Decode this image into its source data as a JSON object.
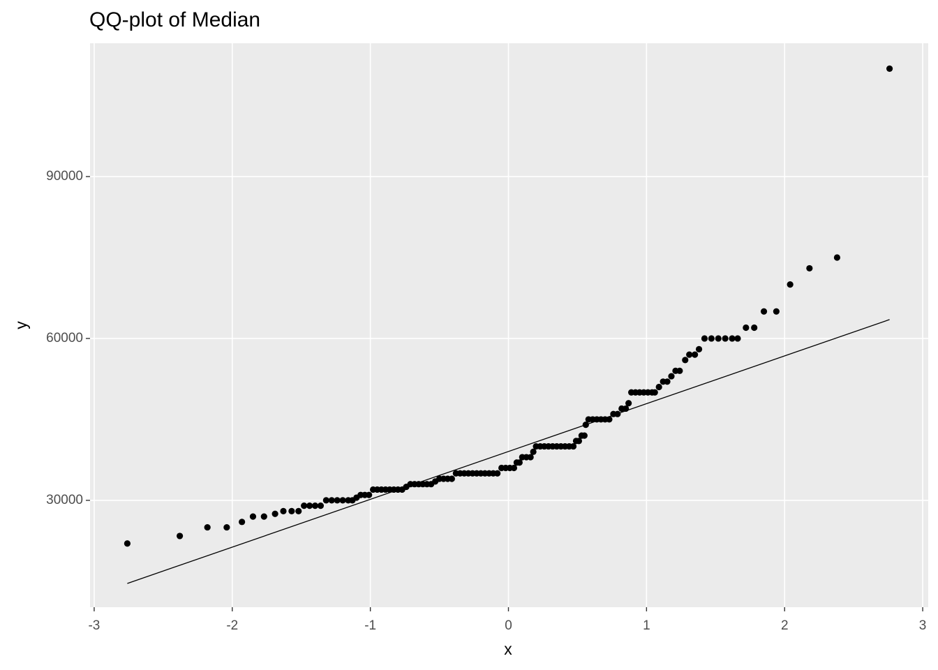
{
  "chart_data": {
    "type": "scatter",
    "title": "QQ-plot of Median",
    "x_label": "x",
    "y_label": "y",
    "x": [
      -2.76,
      -2.38,
      -2.18,
      -2.04,
      -1.93,
      -1.85,
      -1.77,
      -1.69,
      -1.63,
      -1.57,
      -1.52,
      -1.48,
      -1.44,
      -1.4,
      -1.36,
      -1.32,
      -1.28,
      -1.24,
      -1.2,
      -1.16,
      -1.13,
      -1.1,
      -1.07,
      -1.04,
      -1.01,
      -0.98,
      -0.95,
      -0.92,
      -0.89,
      -0.86,
      -0.83,
      -0.8,
      -0.77,
      -0.74,
      -0.71,
      -0.68,
      -0.65,
      -0.62,
      -0.59,
      -0.56,
      -0.53,
      -0.5,
      -0.47,
      -0.44,
      -0.41,
      -0.38,
      -0.35,
      -0.32,
      -0.29,
      -0.26,
      -0.23,
      -0.2,
      -0.17,
      -0.14,
      -0.11,
      -0.08,
      -0.05,
      -0.02,
      0.01,
      0.04,
      0.06,
      0.08,
      0.1,
      0.13,
      0.16,
      0.18,
      0.2,
      0.23,
      0.26,
      0.29,
      0.32,
      0.35,
      0.38,
      0.41,
      0.44,
      0.47,
      0.49,
      0.51,
      0.53,
      0.55,
      0.56,
      0.58,
      0.61,
      0.64,
      0.67,
      0.7,
      0.73,
      0.76,
      0.79,
      0.82,
      0.85,
      0.87,
      0.89,
      0.92,
      0.95,
      0.98,
      1.01,
      1.04,
      1.06,
      1.09,
      1.12,
      1.15,
      1.18,
      1.21,
      1.24,
      1.28,
      1.31,
      1.35,
      1.38,
      1.42,
      1.47,
      1.52,
      1.57,
      1.62,
      1.66,
      1.72,
      1.78,
      1.85,
      1.94,
      2.04,
      2.18,
      2.38,
      2.76
    ],
    "y": [
      22000,
      23400,
      25000,
      25000,
      26000,
      27000,
      27000,
      27500,
      28000,
      28000,
      28000,
      29000,
      29000,
      29000,
      29000,
      30000,
      30000,
      30000,
      30000,
      30000,
      30000,
      30500,
      31000,
      31000,
      31000,
      32000,
      32000,
      32000,
      32000,
      32000,
      32000,
      32000,
      32000,
      32500,
      33000,
      33000,
      33000,
      33000,
      33000,
      33000,
      33500,
      34000,
      34000,
      34000,
      34000,
      35000,
      35000,
      35000,
      35000,
      35000,
      35000,
      35000,
      35000,
      35000,
      35000,
      35000,
      36000,
      36000,
      36000,
      36000,
      37000,
      37000,
      38000,
      38000,
      38000,
      39000,
      40000,
      40000,
      40000,
      40000,
      40000,
      40000,
      40000,
      40000,
      40000,
      40000,
      41000,
      41000,
      42000,
      42000,
      44000,
      45000,
      45000,
      45000,
      45000,
      45000,
      45000,
      46000,
      46000,
      47000,
      47000,
      48000,
      50000,
      50000,
      50000,
      50000,
      50000,
      50000,
      50000,
      51000,
      52000,
      52000,
      53000,
      54000,
      54000,
      56000,
      57000,
      57000,
      58000,
      60000,
      60000,
      60000,
      60000,
      60000,
      60000,
      62000,
      62000,
      65000,
      65000,
      70000,
      73000,
      75000,
      110000
    ],
    "color": "#000000",
    "reference_line": {
      "x": [
        -2.76,
        2.76
      ],
      "y": [
        14600,
        63500
      ]
    },
    "xlim": [
      -3.03,
      3.04
    ],
    "ylim": [
      10200,
      114700
    ],
    "xticks": [
      -3,
      -2,
      -1,
      0,
      1,
      2,
      3
    ],
    "yticks": [
      30000,
      60000,
      90000
    ],
    "grid": true
  }
}
